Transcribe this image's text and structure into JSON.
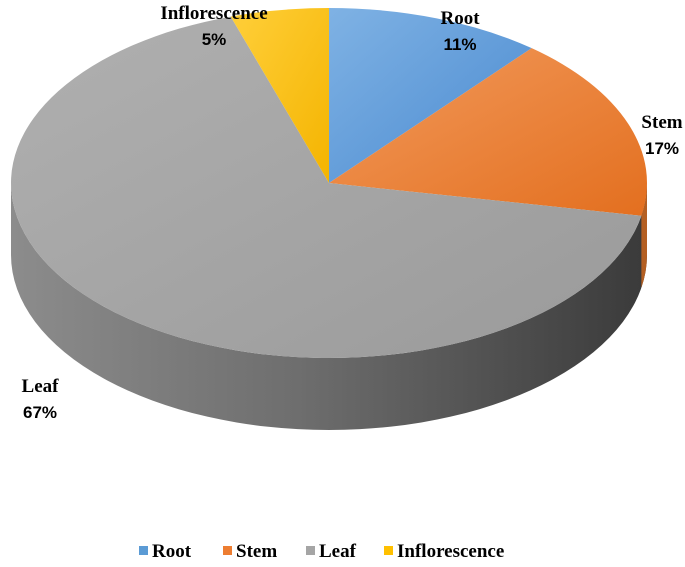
{
  "chart_data": {
    "type": "pie",
    "style": "3d",
    "title": "",
    "categories": [
      "Root",
      "Stem",
      "Leaf",
      "Inflorescence"
    ],
    "values": [
      11,
      17,
      67,
      5
    ],
    "labels": [
      "11%",
      "17%",
      "67%",
      "5%"
    ],
    "colors": [
      "#5B9BD5",
      "#ED7D31",
      "#A5A5A5",
      "#FFC000"
    ],
    "legend": "bottom"
  }
}
